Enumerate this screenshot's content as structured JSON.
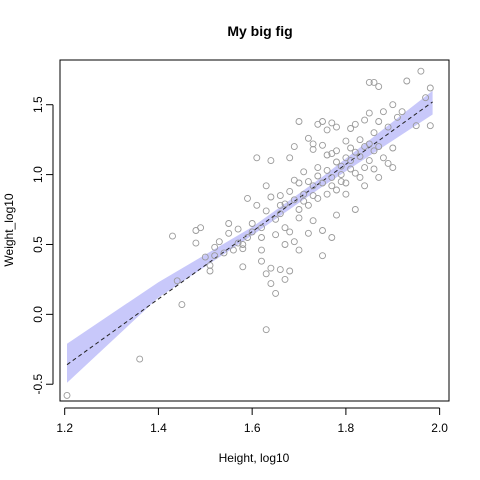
{
  "chart_data": {
    "type": "scatter",
    "title": "My big fig",
    "xlabel": "Height, log10",
    "ylabel": "Weight_log10",
    "xlim": [
      1.19,
      2.02
    ],
    "ylim": [
      -0.62,
      1.82
    ],
    "xticks": [
      {
        "value": 1.2,
        "label": "1.2"
      },
      {
        "value": 1.4,
        "label": "1.4"
      },
      {
        "value": 1.6,
        "label": "1.6"
      },
      {
        "value": 1.8,
        "label": "1.8"
      },
      {
        "value": 2.0,
        "label": "2.0"
      }
    ],
    "yticks": [
      {
        "value": -0.5,
        "label": "-0.5"
      },
      {
        "value": 0.0,
        "label": "0.0"
      },
      {
        "value": 0.5,
        "label": "0.5"
      },
      {
        "value": 1.0,
        "label": "1.0"
      },
      {
        "value": 1.5,
        "label": "1.5"
      }
    ],
    "grid": false,
    "fit_line": {
      "x": [
        1.205,
        1.985
      ],
      "y": [
        -0.36,
        1.52
      ]
    },
    "confidence_band": {
      "x": [
        1.205,
        1.4,
        1.6,
        1.75,
        1.985
      ],
      "lower": [
        -0.49,
        0.12,
        0.565,
        0.915,
        1.43
      ],
      "upper": [
        -0.21,
        0.23,
        0.625,
        0.985,
        1.6
      ]
    },
    "points": [
      [
        1.205,
        -0.58
      ],
      [
        1.36,
        -0.32
      ],
      [
        1.43,
        0.56
      ],
      [
        1.44,
        0.24
      ],
      [
        1.45,
        0.07
      ],
      [
        1.48,
        0.51
      ],
      [
        1.48,
        0.6
      ],
      [
        1.49,
        0.62
      ],
      [
        1.5,
        0.41
      ],
      [
        1.51,
        0.35
      ],
      [
        1.51,
        0.31
      ],
      [
        1.52,
        0.42
      ],
      [
        1.52,
        0.48
      ],
      [
        1.53,
        0.52
      ],
      [
        1.54,
        0.44
      ],
      [
        1.55,
        0.58
      ],
      [
        1.55,
        0.65
      ],
      [
        1.56,
        0.46
      ],
      [
        1.57,
        0.61
      ],
      [
        1.57,
        0.51
      ],
      [
        1.58,
        0.5
      ],
      [
        1.58,
        0.47
      ],
      [
        1.58,
        0.34
      ],
      [
        1.59,
        0.83
      ],
      [
        1.59,
        0.55
      ],
      [
        1.6,
        0.59
      ],
      [
        1.6,
        0.65
      ],
      [
        1.61,
        1.12
      ],
      [
        1.61,
        0.78
      ],
      [
        1.62,
        0.62
      ],
      [
        1.62,
        0.55
      ],
      [
        1.62,
        0.46
      ],
      [
        1.62,
        0.38
      ],
      [
        1.63,
        0.92
      ],
      [
        1.63,
        0.74
      ],
      [
        1.63,
        0.29
      ],
      [
        1.63,
        -0.11
      ],
      [
        1.64,
        1.1
      ],
      [
        1.64,
        0.84
      ],
      [
        1.64,
        0.33
      ],
      [
        1.64,
        0.22
      ],
      [
        1.65,
        0.68
      ],
      [
        1.65,
        0.57
      ],
      [
        1.65,
        0.15
      ],
      [
        1.66,
        0.85
      ],
      [
        1.66,
        0.78
      ],
      [
        1.66,
        0.72
      ],
      [
        1.66,
        0.32
      ],
      [
        1.67,
        0.79
      ],
      [
        1.67,
        0.62
      ],
      [
        1.67,
        0.5
      ],
      [
        1.67,
        0.25
      ],
      [
        1.68,
        1.12
      ],
      [
        1.68,
        0.88
      ],
      [
        1.68,
        0.59
      ],
      [
        1.68,
        0.31
      ],
      [
        1.69,
        1.2
      ],
      [
        1.69,
        0.96
      ],
      [
        1.69,
        0.82
      ],
      [
        1.69,
        0.52
      ],
      [
        1.7,
        1.38
      ],
      [
        1.7,
        0.94
      ],
      [
        1.7,
        0.75
      ],
      [
        1.7,
        0.69
      ],
      [
        1.7,
        0.46
      ],
      [
        1.71,
        1.02
      ],
      [
        1.71,
        0.86
      ],
      [
        1.71,
        0.81
      ],
      [
        1.72,
        1.26
      ],
      [
        1.72,
        0.95
      ],
      [
        1.72,
        0.78
      ],
      [
        1.72,
        0.58
      ],
      [
        1.73,
        1.22
      ],
      [
        1.73,
        1.18
      ],
      [
        1.73,
        0.92
      ],
      [
        1.73,
        0.85
      ],
      [
        1.73,
        0.67
      ],
      [
        1.74,
        1.36
      ],
      [
        1.74,
        1.05
      ],
      [
        1.74,
        0.99
      ],
      [
        1.74,
        0.83
      ],
      [
        1.75,
        1.38
      ],
      [
        1.75,
        1.21
      ],
      [
        1.75,
        0.94
      ],
      [
        1.75,
        0.6
      ],
      [
        1.75,
        0.42
      ],
      [
        1.76,
        1.32
      ],
      [
        1.76,
        1.14
      ],
      [
        1.76,
        1.03
      ],
      [
        1.76,
        0.86
      ],
      [
        1.77,
        1.37
      ],
      [
        1.77,
        1.15
      ],
      [
        1.77,
        0.98
      ],
      [
        1.77,
        0.92
      ],
      [
        1.77,
        0.55
      ],
      [
        1.78,
        1.34
      ],
      [
        1.78,
        1.17
      ],
      [
        1.78,
        1.09
      ],
      [
        1.78,
        0.89
      ],
      [
        1.78,
        0.71
      ],
      [
        1.79,
        1.06
      ],
      [
        1.79,
        1.0
      ],
      [
        1.79,
        0.95
      ],
      [
        1.8,
        1.24
      ],
      [
        1.8,
        1.12
      ],
      [
        1.8,
        0.94
      ],
      [
        1.8,
        0.86
      ],
      [
        1.81,
        1.33
      ],
      [
        1.81,
        1.19
      ],
      [
        1.81,
        1.1
      ],
      [
        1.81,
        1.04
      ],
      [
        1.82,
        1.36
      ],
      [
        1.82,
        1.16
      ],
      [
        1.82,
        1.01
      ],
      [
        1.82,
        0.75
      ],
      [
        1.83,
        1.25
      ],
      [
        1.83,
        1.13
      ],
      [
        1.83,
        0.98
      ],
      [
        1.84,
        1.39
      ],
      [
        1.84,
        1.2
      ],
      [
        1.84,
        1.05
      ],
      [
        1.84,
        0.92
      ],
      [
        1.85,
        1.66
      ],
      [
        1.85,
        1.44
      ],
      [
        1.85,
        1.22
      ],
      [
        1.85,
        1.1
      ],
      [
        1.86,
        1.66
      ],
      [
        1.86,
        1.3
      ],
      [
        1.86,
        1.17
      ],
      [
        1.86,
        1.04
      ],
      [
        1.87,
        1.63
      ],
      [
        1.87,
        1.38
      ],
      [
        1.87,
        1.2
      ],
      [
        1.87,
        0.98
      ],
      [
        1.88,
        1.45
      ],
      [
        1.88,
        1.12
      ],
      [
        1.89,
        1.34
      ],
      [
        1.89,
        1.08
      ],
      [
        1.9,
        1.5
      ],
      [
        1.9,
        1.19
      ],
      [
        1.9,
        1.05
      ],
      [
        1.91,
        1.41
      ],
      [
        1.92,
        1.45
      ],
      [
        1.93,
        1.67
      ],
      [
        1.95,
        1.35
      ],
      [
        1.96,
        1.74
      ],
      [
        1.97,
        1.55
      ],
      [
        1.98,
        1.62
      ],
      [
        1.98,
        1.35
      ]
    ]
  }
}
